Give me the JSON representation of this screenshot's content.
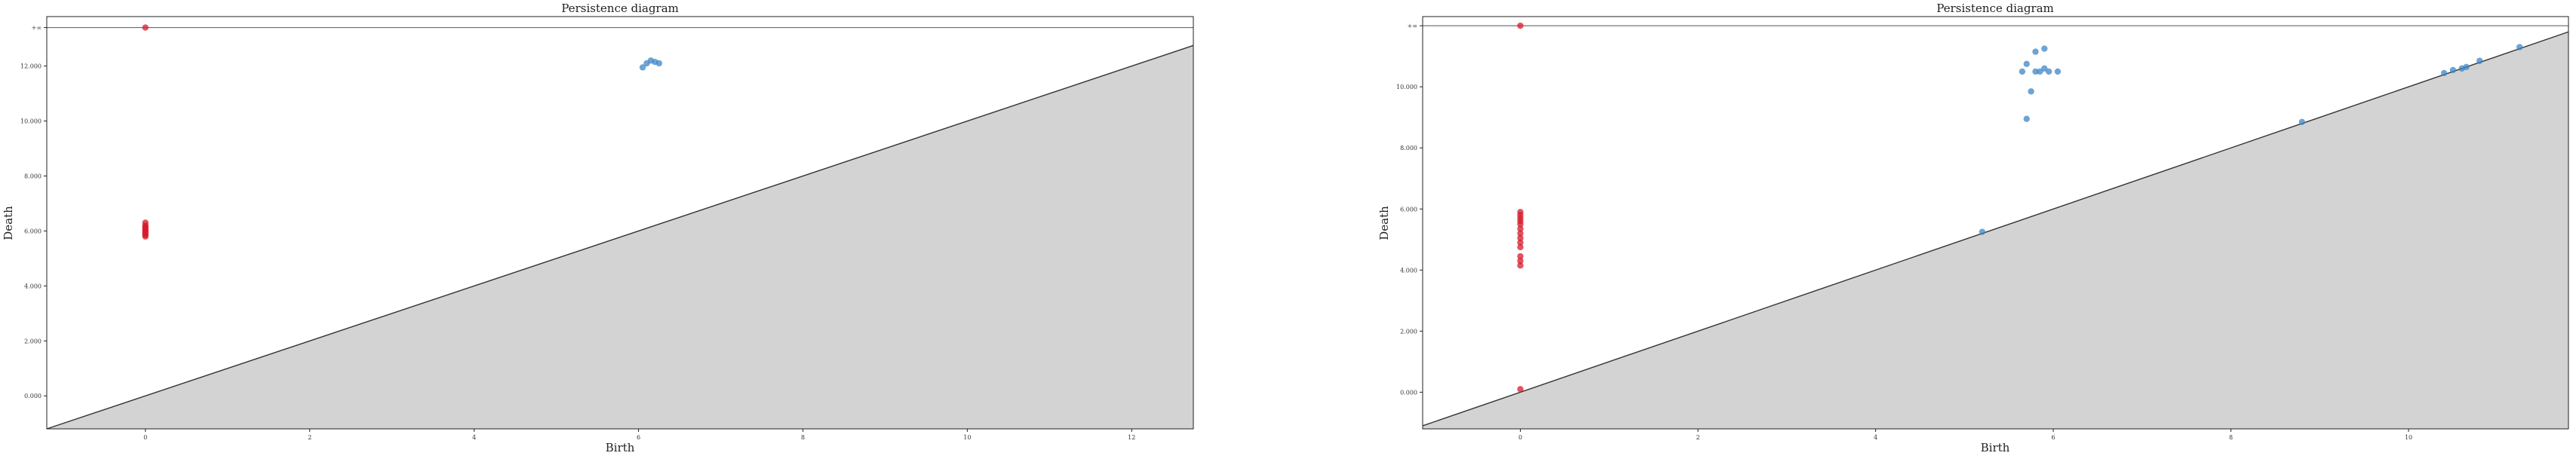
{
  "colors": {
    "h0": "#d7192b",
    "h1": "#3e86c4",
    "diagonal_fill": "#d3d3d3",
    "line": "#555555"
  },
  "chart_data": [
    {
      "type": "scatter",
      "title": "Persistence diagram",
      "xlabel": "Birth",
      "ylabel": "Death",
      "xlim": [
        -1.2,
        12.75
      ],
      "ylim": [
        -1.2,
        13.8
      ],
      "infinity_y": 13.4,
      "infinity_label": "+∞",
      "x_ticks": [
        0,
        2,
        4,
        6,
        8,
        10,
        12
      ],
      "x_tick_labels": [
        "0",
        "2",
        "4",
        "6",
        "8",
        "10",
        "12"
      ],
      "y_ticks": [
        0,
        2,
        4,
        6,
        8,
        10,
        12
      ],
      "y_tick_labels": [
        "0.000",
        "2.000",
        "4.000",
        "6.000",
        "8.000",
        "10.000",
        "12.000"
      ],
      "grid": false,
      "series": [
        {
          "dimension": "H0",
          "points": [
            [
              0,
              13.4
            ],
            [
              0,
              6.3
            ],
            [
              0,
              6.2
            ],
            [
              0,
              6.15
            ],
            [
              0,
              6.1
            ],
            [
              0,
              6.05
            ],
            [
              0,
              6.0
            ],
            [
              0,
              5.95
            ],
            [
              0,
              5.9
            ],
            [
              0,
              5.85
            ],
            [
              0,
              5.8
            ]
          ]
        },
        {
          "dimension": "H1",
          "points": [
            [
              6.05,
              11.95
            ],
            [
              6.1,
              12.1
            ],
            [
              6.15,
              12.2
            ],
            [
              6.2,
              12.15
            ],
            [
              6.25,
              12.1
            ]
          ]
        }
      ]
    },
    {
      "type": "scatter",
      "title": "Persistence diagram",
      "xlabel": "Birth",
      "ylabel": "Death",
      "xlim": [
        -1.1,
        11.8
      ],
      "ylim": [
        -1.2,
        12.3
      ],
      "infinity_y": 12.0,
      "infinity_label": "+∞",
      "x_ticks": [
        0,
        2,
        4,
        6,
        8,
        10
      ],
      "x_tick_labels": [
        "0",
        "2",
        "4",
        "6",
        "8",
        "10"
      ],
      "y_ticks": [
        0,
        2,
        4,
        6,
        8,
        10
      ],
      "y_tick_labels": [
        "0.000",
        "2.000",
        "4.000",
        "6.000",
        "8.000",
        "10.000"
      ],
      "grid": false,
      "series": [
        {
          "dimension": "H0",
          "points": [
            [
              0,
              12.0
            ],
            [
              0,
              5.9
            ],
            [
              0,
              5.8
            ],
            [
              0,
              5.7
            ],
            [
              0,
              5.6
            ],
            [
              0,
              5.5
            ],
            [
              0,
              5.35
            ],
            [
              0,
              5.2
            ],
            [
              0,
              5.05
            ],
            [
              0,
              4.9
            ],
            [
              0,
              4.75
            ],
            [
              0,
              4.45
            ],
            [
              0,
              4.3
            ],
            [
              0,
              4.15
            ],
            [
              0,
              0.1
            ]
          ]
        },
        {
          "dimension": "H1",
          "points": [
            [
              5.7,
              8.95
            ],
            [
              5.75,
              9.85
            ],
            [
              5.8,
              10.5
            ],
            [
              5.85,
              10.5
            ],
            [
              5.7,
              10.75
            ],
            [
              5.65,
              10.5
            ],
            [
              5.9,
              10.6
            ],
            [
              5.95,
              10.5
            ],
            [
              6.05,
              10.5
            ],
            [
              5.8,
              11.15
            ],
            [
              5.9,
              11.25
            ],
            [
              5.2,
              5.25
            ],
            [
              8.8,
              8.85
            ],
            [
              10.4,
              10.45
            ],
            [
              10.5,
              10.55
            ],
            [
              10.6,
              10.6
            ],
            [
              10.65,
              10.65
            ],
            [
              10.8,
              10.85
            ],
            [
              11.25,
              11.3
            ]
          ]
        }
      ]
    }
  ]
}
